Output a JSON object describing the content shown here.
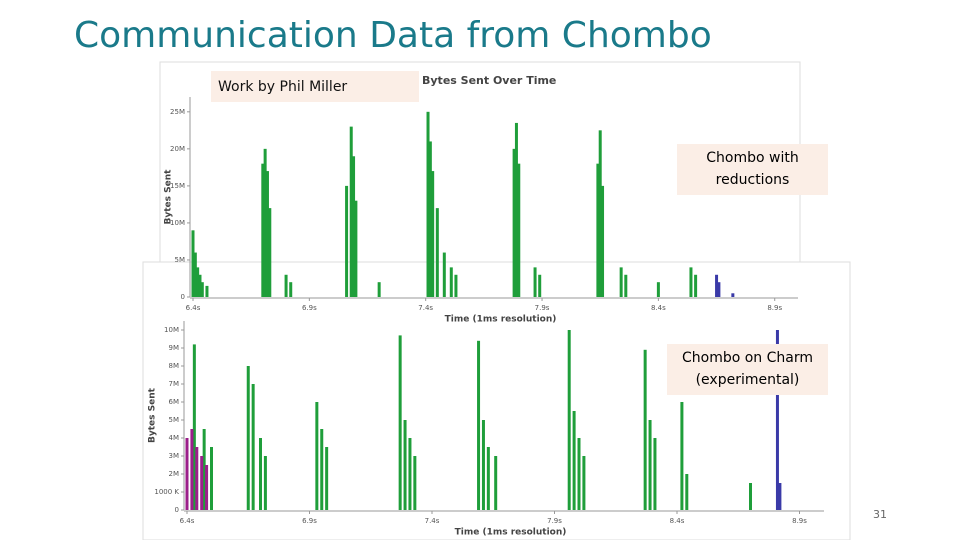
{
  "slide": {
    "title": "Communication Data from Chombo",
    "credit": "Work by Phil Miller",
    "label_top": "Chombo with reductions",
    "label_bottom": "Chombo on Charm (experimental)",
    "page_number": "31"
  },
  "chart_data": [
    {
      "type": "bar",
      "title": "Bytes Sent Over Time",
      "xlabel": "Time (1ms resolution)",
      "ylabel": "Bytes Sent",
      "xlim": [
        6.4,
        9.0
      ],
      "ylim": [
        0,
        27000000
      ],
      "xticks": [
        {
          "value": 6.4,
          "label": "6.4s"
        },
        {
          "value": 6.9,
          "label": "6.9s"
        },
        {
          "value": 7.4,
          "label": "7.4s"
        },
        {
          "value": 7.9,
          "label": "7.9s"
        },
        {
          "value": 8.4,
          "label": "8.4s"
        },
        {
          "value": 8.9,
          "label": "8.9s"
        }
      ],
      "yticks": [
        0,
        {
          "value": 5000000,
          "label": "5M"
        },
        {
          "value": 10000000,
          "label": "10M"
        },
        {
          "value": 15000000,
          "label": "15M"
        },
        {
          "value": 20000000,
          "label": "20M"
        },
        {
          "value": 25000000,
          "label": "25M"
        }
      ],
      "series": [
        {
          "color": "#1f9e3a",
          "x": [
            6.4,
            6.41,
            6.42,
            6.43,
            6.44,
            6.46,
            6.7,
            6.71,
            6.72,
            6.73,
            6.8,
            6.82,
            7.06,
            7.08,
            7.09,
            7.1,
            7.2,
            7.41,
            7.42,
            7.43,
            7.45,
            7.48,
            7.51,
            7.53,
            7.78,
            7.79,
            7.8,
            7.87,
            7.89,
            8.14,
            8.15,
            8.16,
            8.24,
            8.26,
            8.4,
            8.54,
            8.56
          ],
          "values": [
            9000000,
            6000000,
            4000000,
            3000000,
            2000000,
            1500000,
            18000000,
            20000000,
            17000000,
            12000000,
            3000000,
            2000000,
            15000000,
            23000000,
            19000000,
            13000000,
            2000000,
            25000000,
            21000000,
            17000000,
            12000000,
            6000000,
            4000000,
            3000000,
            20000000,
            23500000,
            18000000,
            4000000,
            3000000,
            18000000,
            22500000,
            15000000,
            4000000,
            3000000,
            2000000,
            4000000,
            3000000
          ]
        },
        {
          "color": "#3a3aa8",
          "x": [
            8.65,
            8.66,
            8.72
          ],
          "values": [
            3000000,
            2000000,
            500000
          ]
        }
      ]
    },
    {
      "type": "bar",
      "xlabel": "Time (1ms resolution)",
      "ylabel": "Bytes Sent",
      "xlim": [
        6.4,
        9.0
      ],
      "ylim": [
        0,
        10500000
      ],
      "xticks": [
        {
          "value": 6.4,
          "label": "6.4s"
        },
        {
          "value": 6.9,
          "label": "6.9s"
        },
        {
          "value": 7.4,
          "label": "7.4s"
        },
        {
          "value": 7.9,
          "label": "7.9s"
        },
        {
          "value": 8.4,
          "label": "8.4s"
        },
        {
          "value": 8.9,
          "label": "8.9s"
        }
      ],
      "yticks": [
        0,
        {
          "value": 1000000,
          "label": "1000 K"
        },
        {
          "value": 2000000,
          "label": "2M"
        },
        {
          "value": 3000000,
          "label": "3M"
        },
        {
          "value": 4000000,
          "label": "4M"
        },
        {
          "value": 5000000,
          "label": "5M"
        },
        {
          "value": 6000000,
          "label": "6M"
        },
        {
          "value": 7000000,
          "label": "7M"
        },
        {
          "value": 8000000,
          "label": "8M"
        },
        {
          "value": 9000000,
          "label": "9M"
        },
        {
          "value": 10000000,
          "label": "10M"
        }
      ],
      "series": [
        {
          "color": "#1f9e3a",
          "x": [
            6.43,
            6.47,
            6.5,
            6.65,
            6.67,
            6.7,
            6.72,
            6.93,
            6.95,
            6.97,
            7.27,
            7.29,
            7.31,
            7.33,
            7.59,
            7.61,
            7.63,
            7.66,
            7.96,
            7.98,
            8.0,
            8.02,
            8.27,
            8.29,
            8.31,
            8.42,
            8.44,
            8.7
          ],
          "values": [
            9200000,
            4500000,
            3500000,
            8000000,
            7000000,
            4000000,
            3000000,
            6000000,
            4500000,
            3500000,
            9700000,
            5000000,
            4000000,
            3000000,
            9400000,
            5000000,
            3500000,
            3000000,
            10000000,
            5500000,
            4000000,
            3000000,
            8900000,
            5000000,
            4000000,
            6000000,
            2000000,
            1500000
          ]
        },
        {
          "color": "#9b1f8a",
          "x": [
            6.4,
            6.42,
            6.44,
            6.46,
            6.48
          ],
          "values": [
            4000000,
            4500000,
            3500000,
            3000000,
            2500000
          ]
        },
        {
          "color": "#3a3aa8",
          "x": [
            8.81,
            8.82
          ],
          "values": [
            10000000,
            1500000
          ]
        }
      ]
    }
  ]
}
